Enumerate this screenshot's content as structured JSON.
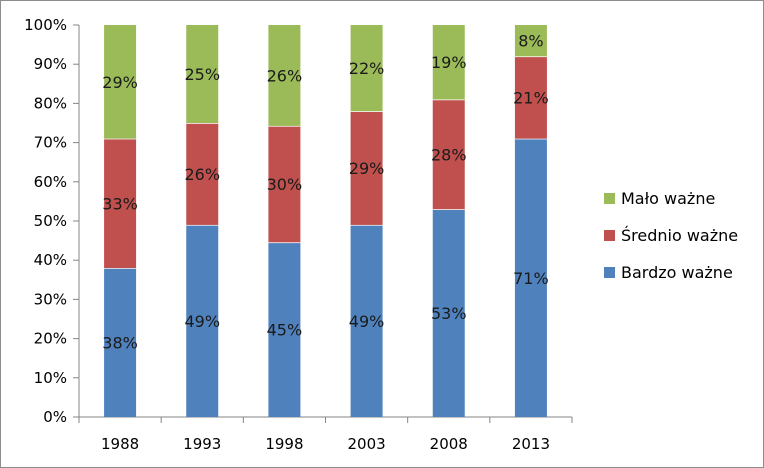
{
  "chart_data": {
    "type": "bar",
    "stacked": true,
    "percent_stacked": true,
    "categories": [
      "1988",
      "1993",
      "1998",
      "2003",
      "2008",
      "2013"
    ],
    "series": [
      {
        "name": "Bardzo ważne",
        "values": [
          38,
          49,
          45,
          49,
          53,
          71
        ],
        "labels": [
          "38%",
          "49%",
          "45%",
          "49%",
          "53%",
          "71%"
        ],
        "color": "#4f81bd"
      },
      {
        "name": "Średnio ważne",
        "values": [
          33,
          26,
          30,
          29,
          28,
          21
        ],
        "labels": [
          "33%",
          "26%",
          "30%",
          "29%",
          "28%",
          "21%"
        ],
        "color": "#c0504d"
      },
      {
        "name": "Mało ważne",
        "values": [
          29,
          25,
          26,
          22,
          19,
          8
        ],
        "labels": [
          "29%",
          "25%",
          "26%",
          "22%",
          "19%",
          "8%"
        ],
        "color": "#9bbb59"
      }
    ],
    "y_ticks": [
      "0%",
      "10%",
      "20%",
      "30%",
      "40%",
      "50%",
      "60%",
      "70%",
      "80%",
      "90%",
      "100%"
    ],
    "ylim": [
      0,
      100
    ],
    "grid": false,
    "legend_position": "right",
    "legend_order": [
      "Mało ważne",
      "Średnio ważne",
      "Bardzo ważne"
    ],
    "title": "",
    "xlabel": "",
    "ylabel": ""
  }
}
